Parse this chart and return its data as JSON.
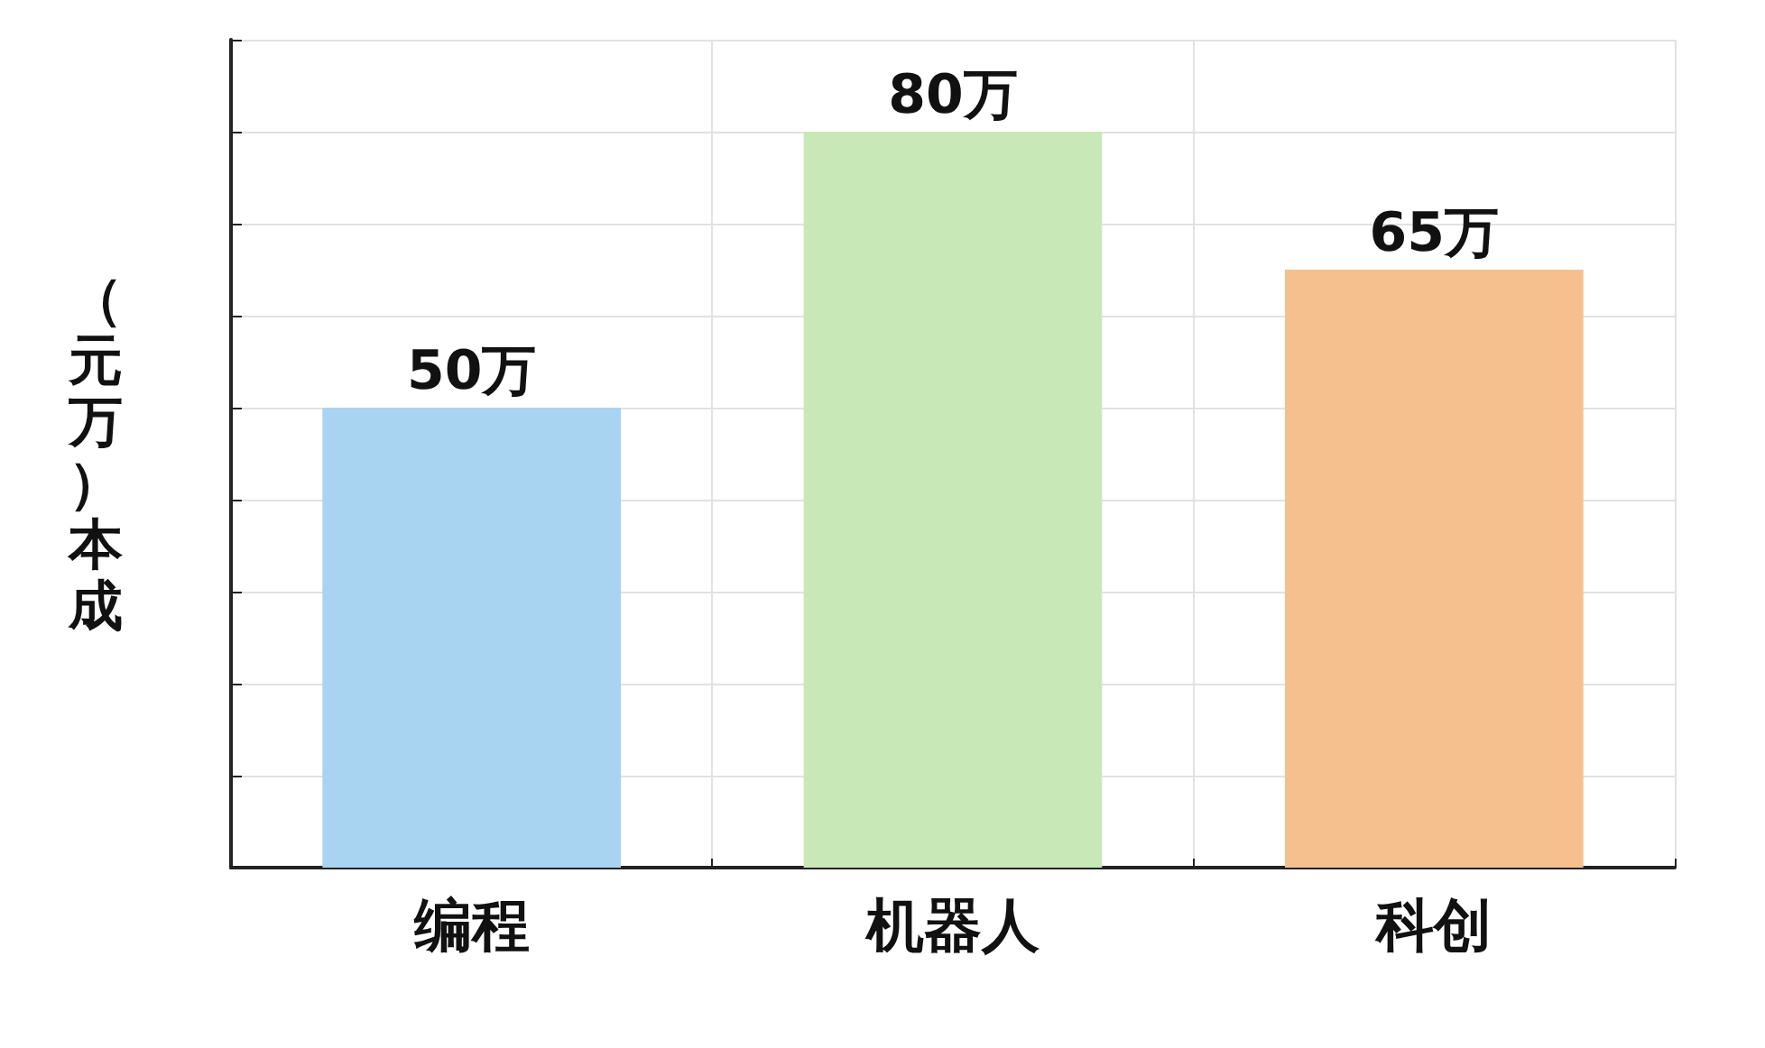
{
  "chart_data": {
    "type": "bar",
    "ylabel": "（元万）本成",
    "categories": [
      "编程",
      "机器人",
      "科创"
    ],
    "values": [
      50,
      80,
      65
    ],
    "value_labels": [
      "50万",
      "80万",
      "65万"
    ],
    "colors": [
      "#a8d4f2",
      "#c9e8b8",
      "#f5c08e"
    ],
    "ylim": [
      0,
      90
    ],
    "yticks": [
      {
        "value": 0,
        "label": null
      },
      {
        "value": 10,
        "label": null
      },
      {
        "value": 20,
        "label": null
      },
      {
        "value": 30,
        "label": null
      },
      {
        "value": 40,
        "label": null
      },
      {
        "value": 50,
        "label": null
      },
      {
        "value": 60,
        "label": null
      },
      {
        "value": 70,
        "label": null
      },
      {
        "value": 80,
        "label": null
      },
      {
        "value": 90,
        "label": null
      }
    ],
    "tick_labels": "x",
    "grid": true
  }
}
